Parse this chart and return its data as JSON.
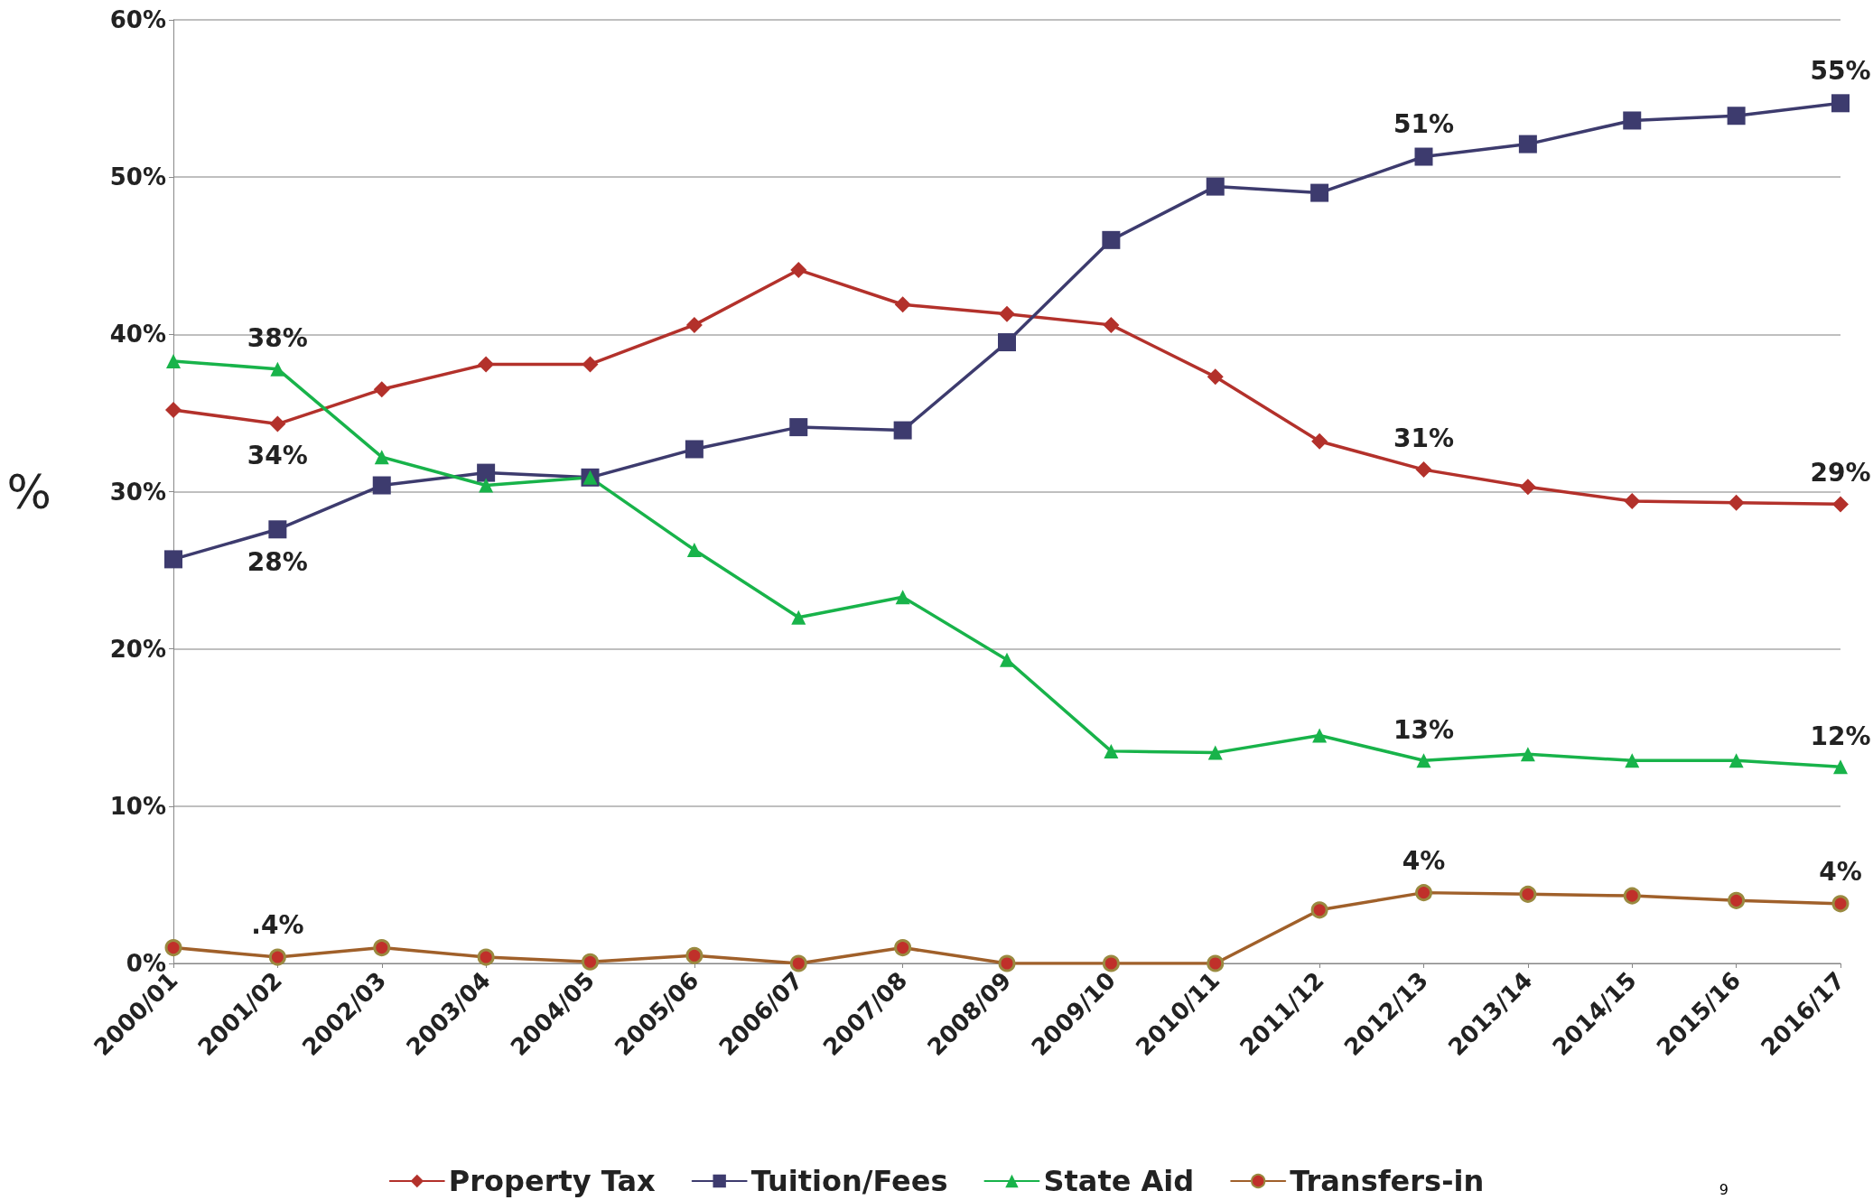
{
  "chart_data": {
    "type": "line",
    "ylabel": "%",
    "categories": [
      "2000/01",
      "2001/02",
      "2002/03",
      "2003/04",
      "2004/05",
      "2005/06",
      "2006/07",
      "2007/08",
      "2008/09",
      "2009/10",
      "2010/11",
      "2011/12",
      "2012/13",
      "2013/14",
      "2014/15",
      "2015/16",
      "2016/17"
    ],
    "series": [
      {
        "name": "Property Tax",
        "color": "#b3312b",
        "marker": "diamond",
        "values": [
          35.2,
          34.3,
          36.5,
          38.1,
          38.1,
          40.6,
          44.1,
          41.9,
          41.3,
          40.6,
          37.3,
          33.2,
          31.4,
          30.3,
          29.4,
          29.3,
          29.2
        ],
        "value_labels": [
          null,
          "34%",
          null,
          null,
          null,
          null,
          null,
          null,
          null,
          null,
          null,
          null,
          "31%",
          null,
          null,
          null,
          "29%"
        ]
      },
      {
        "name": "Tuition/Fees",
        "color": "#3d3b6e",
        "marker": "square",
        "values": [
          25.7,
          27.6,
          30.4,
          31.2,
          30.9,
          32.7,
          34.1,
          33.9,
          39.5,
          46.0,
          49.4,
          49.0,
          51.3,
          52.1,
          53.6,
          53.9,
          54.7
        ],
        "value_labels": [
          null,
          "28%",
          null,
          null,
          null,
          null,
          null,
          null,
          null,
          null,
          null,
          null,
          "51%",
          null,
          null,
          null,
          "55%"
        ]
      },
      {
        "name": "State Aid",
        "color": "#18b34a",
        "marker": "triangle",
        "values": [
          38.3,
          37.8,
          32.2,
          30.4,
          30.9,
          26.3,
          22.0,
          23.3,
          19.3,
          13.5,
          13.4,
          14.5,
          12.9,
          13.3,
          12.9,
          12.9,
          12.5
        ],
        "value_labels": [
          null,
          "38%",
          null,
          null,
          null,
          null,
          null,
          null,
          null,
          null,
          null,
          null,
          "13%",
          null,
          null,
          null,
          "12%"
        ]
      },
      {
        "name": "Transfers-in",
        "color": "#a0602a",
        "marker": "circle",
        "values": [
          1.0,
          0.4,
          1.0,
          0.4,
          0.1,
          0.5,
          0.0,
          1.0,
          0.0,
          0.0,
          0.0,
          3.4,
          4.5,
          4.4,
          4.3,
          4.0,
          3.8
        ],
        "value_labels": [
          null,
          ".4%",
          null,
          null,
          null,
          null,
          null,
          null,
          null,
          null,
          null,
          null,
          "4%",
          null,
          null,
          null,
          "4%"
        ]
      }
    ],
    "ylim": [
      0,
      60
    ],
    "yticks": [
      {
        "value": 0,
        "label": "0%"
      },
      {
        "value": 10,
        "label": "10%"
      },
      {
        "value": 20,
        "label": "20%"
      },
      {
        "value": 30,
        "label": "30%"
      },
      {
        "value": 40,
        "label": "40%"
      },
      {
        "value": 50,
        "label": "50%"
      },
      {
        "value": 60,
        "label": "60%"
      }
    ],
    "grid": "y",
    "legend": "bottom",
    "line_style": "solid",
    "annotations": [
      "9"
    ]
  }
}
